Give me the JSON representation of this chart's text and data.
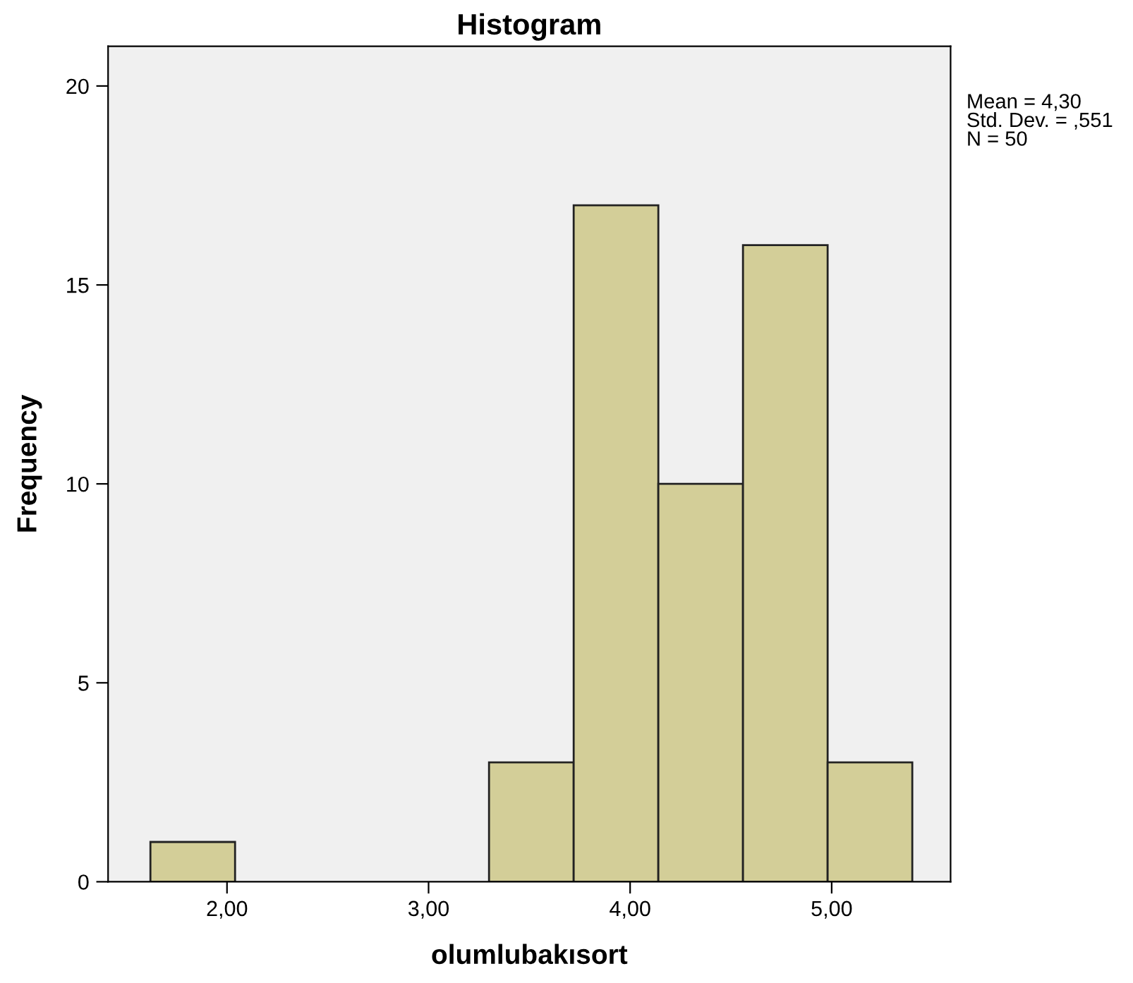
{
  "chart_data": {
    "type": "histogram",
    "title": "Histogram",
    "xlabel": "olumlubakısort",
    "ylabel": "Frequency",
    "bins": [
      1.62,
      2.04,
      2.46,
      2.88,
      3.3,
      3.72,
      4.14,
      4.56,
      4.98,
      5.4
    ],
    "values": [
      1,
      0,
      0,
      0,
      3,
      17,
      10,
      16,
      3
    ],
    "color": "#d3ce98",
    "xlim": [
      1.41,
      5.59
    ],
    "xticks": [
      {
        "value": 2,
        "label": "2,00"
      },
      {
        "value": 3,
        "label": "3,00"
      },
      {
        "value": 4,
        "label": "4,00"
      },
      {
        "value": 5,
        "label": "5,00"
      }
    ],
    "ylim": [
      0,
      21
    ],
    "yticks": [
      0,
      5,
      10,
      15,
      20
    ],
    "grid": false,
    "legend": false,
    "annotations": [
      "Mean = 4,30",
      "Std. Dev. = ,551",
      "N = 50"
    ]
  }
}
